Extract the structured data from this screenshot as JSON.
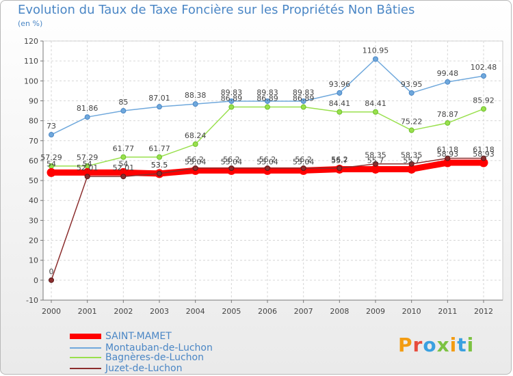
{
  "header": {
    "title": "Evolution du Taux de Taxe Foncière sur les Propriétés Non Bâties",
    "unit": "(en %)"
  },
  "logo": {
    "text": "Proxiti"
  },
  "chart_data": {
    "type": "line",
    "title": "Evolution du Taux de Taxe Foncière sur les Propriétés Non Bâties",
    "ylabel": "(en %)",
    "xlabel": "",
    "ylim": [
      -10,
      120
    ],
    "yticks": [
      "-10",
      "0",
      "10",
      "20",
      "30",
      "40",
      "50",
      "60",
      "70",
      "80",
      "90",
      "100",
      "110",
      "120"
    ],
    "categories": [
      "2000",
      "2001",
      "2002",
      "2003",
      "2004",
      "2005",
      "2006",
      "2007",
      "2008",
      "2009",
      "2010",
      "2011",
      "2012"
    ],
    "grid": true,
    "legend": "bottom-left",
    "series": [
      {
        "name": "SAINT-MAMET",
        "color": "#ff0000",
        "stroke": "#ff0000",
        "values": [
          54,
          54,
          54,
          53.5,
          55.04,
          55.04,
          55.04,
          55.04,
          55.7,
          55.7,
          55.7,
          58.93,
          58.93
        ],
        "labels": [
          "54",
          "54",
          "54",
          "53.5",
          "55.04",
          "55.04",
          "55.04",
          "55.04",
          "55.7",
          "55.7",
          "55.7",
          "58.93",
          "58.93"
        ]
      },
      {
        "name": "Montauban-de-Luchon",
        "color": "#6fa8dc",
        "stroke": "#4a86c5",
        "values": [
          73,
          81.86,
          85,
          87.01,
          88.38,
          89.83,
          89.83,
          89.83,
          93.96,
          110.95,
          93.95,
          99.48,
          102.48
        ],
        "labels": [
          "73",
          "81.86",
          "85",
          "87.01",
          "88.38",
          "89.83",
          "89.83",
          "89.83",
          "93.96",
          "110.95",
          "93.95",
          "99.48",
          "102.48"
        ]
      },
      {
        "name": "Bagnères-de-Luchon",
        "color": "#99e04d",
        "stroke": "#6cbf2a",
        "values": [
          57.29,
          57.29,
          61.77,
          61.77,
          68.24,
          86.89,
          86.89,
          86.89,
          84.41,
          84.41,
          75.22,
          78.87,
          85.92
        ],
        "labels": [
          "57.29",
          "57.29",
          "61.77",
          "61.77",
          "68.24",
          "86.89",
          "86.89",
          "86.89",
          "84.41",
          "84.41",
          "75.22",
          "78.87",
          "85.92"
        ]
      },
      {
        "name": "Juzet-de-Luchon",
        "color": "#8b2d2d",
        "stroke": "#5a1a1a",
        "values": [
          0,
          52.01,
          52.01,
          53.5,
          56.2,
          56.2,
          56.2,
          56.2,
          56.2,
          58.35,
          58.35,
          61.18,
          61.18
        ],
        "labels": [
          "0",
          "52.01",
          "52.01",
          "53.5",
          "56.2",
          "56.2",
          "56.2",
          "56.2",
          "56.2",
          "58.35",
          "58.35",
          "61.18",
          "61.18"
        ]
      }
    ]
  }
}
